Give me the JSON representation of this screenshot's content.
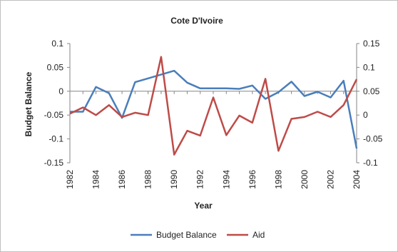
{
  "chart_data": {
    "type": "line",
    "title": "Cote D'Ivoire",
    "xlabel": "Year",
    "ylabel": "Budget Balance",
    "y2label": "",
    "xlim": [
      1982,
      2004
    ],
    "ylim": [
      -0.15,
      0.1
    ],
    "y2lim": [
      -0.1,
      0.15
    ],
    "x_ticks": [
      "1982",
      "1984",
      "1986",
      "1988",
      "1990",
      "1992",
      "1994",
      "1996",
      "1998",
      "2000",
      "2002",
      "2004"
    ],
    "y_ticks": [
      "0.1",
      "0.05",
      "0",
      "-0.05",
      "-0.1",
      "-0.15"
    ],
    "y2_ticks": [
      "0.15",
      "0.1",
      "0.05",
      "0",
      "-0.05",
      "-0.1"
    ],
    "grid": false,
    "legend_position": "bottom",
    "x": [
      1982,
      1983,
      1984,
      1985,
      1986,
      1987,
      1988,
      1989,
      1990,
      1991,
      1992,
      1993,
      1994,
      1995,
      1996,
      1997,
      1998,
      1999,
      2000,
      2001,
      2002,
      2003,
      2004
    ],
    "series": [
      {
        "name": "Budget Balance",
        "axis": "left",
        "color": "#4a7ebb",
        "values": [
          -0.043,
          -0.043,
          0.009,
          -0.004,
          -0.056,
          0.019,
          0.027,
          0.035,
          0.043,
          0.018,
          0.006,
          0.006,
          0.006,
          0.005,
          0.012,
          -0.016,
          -0.002,
          0.02,
          -0.01,
          -0.001,
          -0.013,
          0.022,
          -0.12
        ]
      },
      {
        "name": "Aid",
        "axis": "right",
        "color": "#be4b48",
        "values": [
          0.003,
          0.016,
          0.0,
          0.021,
          -0.004,
          0.005,
          0.0,
          0.122,
          -0.083,
          -0.033,
          -0.043,
          0.037,
          -0.042,
          -0.001,
          -0.016,
          0.076,
          -0.075,
          -0.008,
          -0.004,
          0.007,
          -0.004,
          0.021,
          0.075
        ]
      }
    ]
  }
}
